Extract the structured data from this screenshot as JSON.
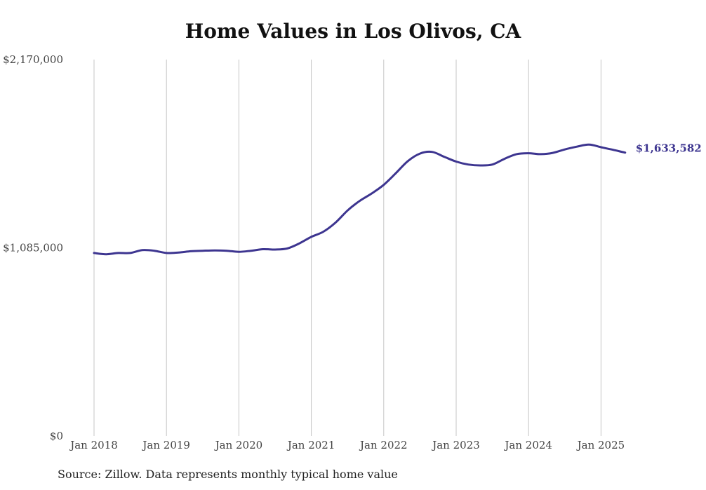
{
  "chart_data": {
    "type": "line",
    "title": "Home Values in Los Olivos, CA",
    "xlabel": "",
    "ylabel": "",
    "ylim": [
      0,
      2170000
    ],
    "xlim": [
      "2018-01",
      "2025-02"
    ],
    "grid": {
      "x": true,
      "y": false
    },
    "legend": "none",
    "line_color": "#3d3590",
    "y_ticks": [
      {
        "value": 0,
        "label": "$0"
      },
      {
        "value": 1085000,
        "label": "$1,085,000"
      },
      {
        "value": 2170000,
        "label": "$2,170,000"
      }
    ],
    "x_ticks": [
      {
        "value": "2018-01",
        "label": "Jan 2018"
      },
      {
        "value": "2019-01",
        "label": "Jan 2019"
      },
      {
        "value": "2020-01",
        "label": "Jan 2020"
      },
      {
        "value": "2021-01",
        "label": "Jan 2021"
      },
      {
        "value": "2022-01",
        "label": "Jan 2022"
      },
      {
        "value": "2023-01",
        "label": "Jan 2023"
      },
      {
        "value": "2024-01",
        "label": "Jan 2024"
      },
      {
        "value": "2025-01",
        "label": "Jan 2025"
      }
    ],
    "series": [
      {
        "points": [
          [
            "2018-01",
            1055000
          ],
          [
            "2018-03",
            1048000
          ],
          [
            "2018-05",
            1055000
          ],
          [
            "2018-07",
            1055000
          ],
          [
            "2018-09",
            1072000
          ],
          [
            "2018-11",
            1068000
          ],
          [
            "2019-01",
            1055000
          ],
          [
            "2019-03",
            1058000
          ],
          [
            "2019-05",
            1065000
          ],
          [
            "2019-07",
            1068000
          ],
          [
            "2019-09",
            1070000
          ],
          [
            "2019-11",
            1068000
          ],
          [
            "2020-01",
            1062000
          ],
          [
            "2020-03",
            1068000
          ],
          [
            "2020-05",
            1077000
          ],
          [
            "2020-07",
            1075000
          ],
          [
            "2020-09",
            1081000
          ],
          [
            "2020-11",
            1110000
          ],
          [
            "2021-01",
            1148000
          ],
          [
            "2021-03",
            1178000
          ],
          [
            "2021-05",
            1230000
          ],
          [
            "2021-07",
            1300000
          ],
          [
            "2021-09",
            1355000
          ],
          [
            "2021-11",
            1398000
          ],
          [
            "2022-01",
            1448000
          ],
          [
            "2022-03",
            1515000
          ],
          [
            "2022-05",
            1585000
          ],
          [
            "2022-07",
            1628000
          ],
          [
            "2022-09",
            1638000
          ],
          [
            "2022-11",
            1610000
          ],
          [
            "2023-01",
            1582000
          ],
          [
            "2023-03",
            1565000
          ],
          [
            "2023-05",
            1560000
          ],
          [
            "2023-07",
            1565000
          ],
          [
            "2023-09",
            1598000
          ],
          [
            "2023-11",
            1625000
          ],
          [
            "2024-01",
            1630000
          ],
          [
            "2024-03",
            1625000
          ],
          [
            "2024-05",
            1632000
          ],
          [
            "2024-07",
            1652000
          ],
          [
            "2024-09",
            1668000
          ],
          [
            "2024-11",
            1680000
          ],
          [
            "2025-01",
            1665000
          ],
          [
            "2025-03",
            1650000
          ],
          [
            "2025-05",
            1633582
          ]
        ],
        "end_label": "$1,633,582"
      }
    ]
  },
  "footer": {
    "source": "Source: Zillow. Data represents monthly typical home value"
  }
}
